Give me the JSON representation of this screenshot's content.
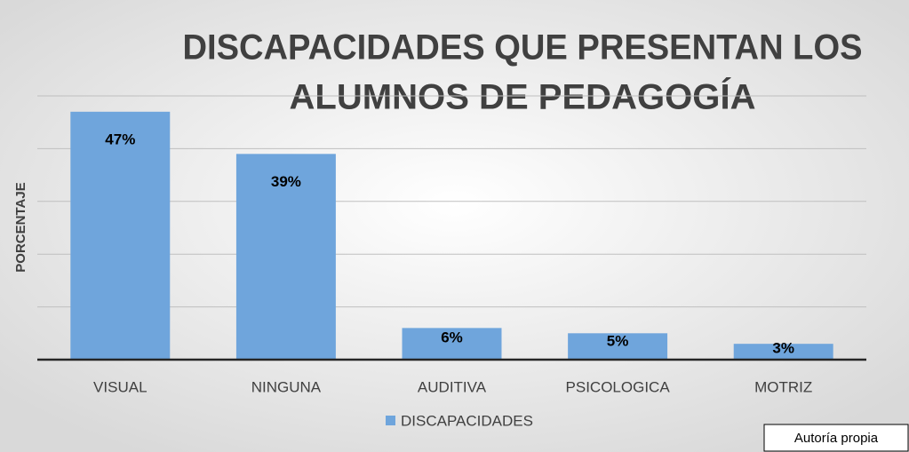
{
  "chart_data": {
    "type": "bar",
    "title": [
      "DISCAPACIDADES QUE PRESENTAN LOS",
      "ALUMNOS DE PEDAGOGÍA"
    ],
    "y_label": "PORCENTAJE",
    "categories": [
      "VISUAL",
      "NINGUNA",
      "AUDITIVA",
      "PSICOLOGICA",
      "MOTRIZ"
    ],
    "series": [
      {
        "name": "DISCAPACIDADES",
        "color": "#6fa5dc",
        "values": [
          47,
          39,
          6,
          5,
          3
        ],
        "value_labels": [
          "47%",
          "39%",
          "6%",
          "5%",
          "3%"
        ]
      }
    ],
    "ylim": [
      0,
      50
    ],
    "yticks": [
      0,
      10,
      20,
      30,
      40,
      50
    ],
    "grid": true,
    "legend": "bottom",
    "note": "Autoría propia"
  }
}
